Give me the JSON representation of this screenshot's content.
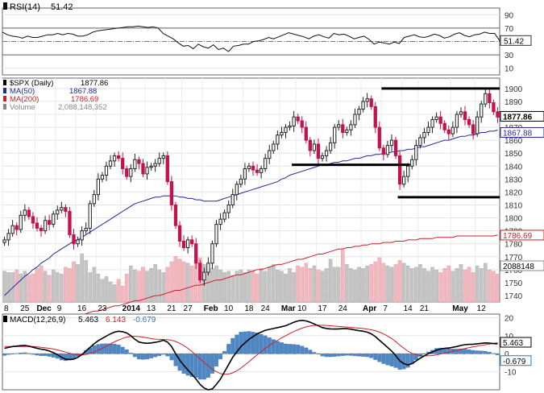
{
  "chart_data": [
    {
      "type": "line",
      "panel": "rsi",
      "legend": {
        "label": "RSI(14)",
        "value": "51.42"
      },
      "yticks": [
        90,
        70,
        50,
        30,
        10
      ],
      "ylim": [
        0,
        100
      ],
      "levels": [
        70,
        30
      ],
      "current_badge": "51.42",
      "series": [
        {
          "name": "RSI(14)",
          "values": [
            64,
            60,
            58,
            57,
            55,
            58,
            56,
            56,
            58,
            60,
            60,
            62,
            60,
            62,
            61,
            58,
            58,
            60,
            64,
            66,
            67,
            68,
            69,
            70,
            71,
            72,
            72,
            73,
            72,
            71,
            72,
            70,
            62,
            58,
            54,
            48,
            43,
            44,
            39,
            46,
            42,
            40,
            45,
            38,
            40,
            35,
            43,
            44,
            46,
            46,
            50,
            51,
            53,
            56,
            54,
            57,
            60,
            63,
            61,
            59,
            57,
            54,
            58,
            60,
            57,
            55,
            62,
            60,
            61,
            58,
            54,
            56,
            58,
            53,
            46,
            49,
            48,
            46,
            49,
            47,
            56,
            58,
            60,
            57,
            56,
            58,
            61,
            59,
            55,
            57,
            61,
            63,
            59,
            57,
            60,
            61,
            64,
            62,
            62,
            51
          ]
        }
      ]
    },
    {
      "type": "candlestick",
      "panel": "price",
      "legend": [
        {
          "label": "$SPX (Daily)",
          "value": "1877.86",
          "color": "#000000"
        },
        {
          "label": "MA(50)",
          "value": "1867.88",
          "color": "#1f2a9c"
        },
        {
          "label": "MA(200)",
          "value": "1786.69",
          "color": "#cc1f2c"
        },
        {
          "label": "Volume",
          "value": "2,088,148,352",
          "color": "#888888"
        }
      ],
      "yticks": [
        1900,
        1890,
        1880,
        1870,
        1860,
        1850,
        1840,
        1830,
        1820,
        1810,
        1800,
        1790,
        1780,
        1770,
        1760,
        1750,
        1740
      ],
      "ylim": [
        1735,
        1908
      ],
      "badges": {
        "price": "1877.86",
        "ma50": "1867.88",
        "ma200": "1786.69",
        "volume": "2088148"
      },
      "x_labels": [
        {
          "i": 0,
          "text": "8"
        },
        {
          "i": 4,
          "text": "25"
        },
        {
          "i": 8,
          "text": "Dec"
        },
        {
          "i": 13,
          "text": "9"
        },
        {
          "i": 18,
          "text": "16"
        },
        {
          "i": 23,
          "text": "23"
        },
        {
          "i": 29,
          "text": "2014"
        },
        {
          "i": 35,
          "text": "13"
        },
        {
          "i": 40,
          "text": "21"
        },
        {
          "i": 44,
          "text": "27"
        },
        {
          "i": 49,
          "text": "Feb"
        },
        {
          "i": 54,
          "text": "10"
        },
        {
          "i": 59,
          "text": "18"
        },
        {
          "i": 63,
          "text": "24"
        },
        {
          "i": 68,
          "text": "Mar"
        },
        {
          "i": 72,
          "text": "10"
        },
        {
          "i": 77,
          "text": "17"
        },
        {
          "i": 82,
          "text": "24"
        },
        {
          "i": 88,
          "text": "Apr"
        },
        {
          "i": 93,
          "text": "7"
        },
        {
          "i": 98,
          "text": "14"
        },
        {
          "i": 102,
          "text": "21"
        },
        {
          "i": 110,
          "text": "May"
        },
        {
          "i": 116,
          "text": "12"
        }
      ],
      "closes": [
        1783,
        1788,
        1794,
        1791,
        1802,
        1806,
        1801,
        1796,
        1792,
        1790,
        1798,
        1795,
        1803,
        1806,
        1808,
        1805,
        1787,
        1780,
        1783,
        1790,
        1792,
        1811,
        1818,
        1830,
        1833,
        1840,
        1844,
        1848,
        1846,
        1838,
        1832,
        1838,
        1845,
        1842,
        1834,
        1839,
        1840,
        1842,
        1846,
        1848,
        1828,
        1810,
        1794,
        1782,
        1777,
        1783,
        1780,
        1765,
        1752,
        1758,
        1765,
        1780,
        1795,
        1799,
        1804,
        1810,
        1818,
        1826,
        1830,
        1838,
        1840,
        1837,
        1835,
        1838,
        1846,
        1852,
        1857,
        1864,
        1866,
        1870,
        1871,
        1878,
        1875,
        1870,
        1860,
        1852,
        1857,
        1846,
        1848,
        1852,
        1858,
        1870,
        1872,
        1866,
        1868,
        1872,
        1880,
        1884,
        1890,
        1892,
        1886,
        1870,
        1854,
        1849,
        1856,
        1860,
        1848,
        1826,
        1832,
        1840,
        1845,
        1856,
        1862,
        1866,
        1870,
        1876,
        1878,
        1873,
        1868,
        1865,
        1870,
        1880,
        1882,
        1876,
        1872,
        1865,
        1878,
        1888,
        1896,
        1889,
        1882,
        1877.86
      ],
      "ma50": [
        1740,
        1743,
        1746,
        1749,
        1752,
        1755,
        1757,
        1760,
        1762,
        1765,
        1767,
        1769,
        1772,
        1774,
        1776,
        1778,
        1780,
        1782,
        1783,
        1785,
        1787,
        1789,
        1791,
        1793,
        1795,
        1797,
        1799,
        1801,
        1803,
        1805,
        1807,
        1809,
        1811,
        1812,
        1813,
        1814,
        1815,
        1816,
        1816,
        1817,
        1817,
        1817,
        1817,
        1816,
        1816,
        1815,
        1815,
        1814,
        1814,
        1813,
        1813,
        1813,
        1813,
        1814,
        1815,
        1816,
        1817,
        1818,
        1819,
        1820,
        1821,
        1822,
        1823,
        1824,
        1825,
        1826,
        1827,
        1828,
        1830,
        1831,
        1833,
        1834,
        1835,
        1836,
        1837,
        1838,
        1839,
        1840,
        1841,
        1841,
        1842,
        1843,
        1843,
        1844,
        1844,
        1845,
        1846,
        1846,
        1847,
        1848,
        1848,
        1849,
        1849,
        1850,
        1850,
        1851,
        1851,
        1852,
        1852,
        1853,
        1853,
        1854,
        1855,
        1855,
        1856,
        1857,
        1858,
        1859,
        1860,
        1860,
        1861,
        1862,
        1863,
        1863,
        1864,
        1864,
        1865,
        1866,
        1866,
        1867,
        1867,
        1867.88
      ],
      "ma200": [
        1710,
        1711,
        1712,
        1712,
        1713,
        1714,
        1715,
        1716,
        1716,
        1717,
        1718,
        1719,
        1720,
        1720,
        1721,
        1722,
        1723,
        1724,
        1724,
        1725,
        1726,
        1727,
        1728,
        1728,
        1729,
        1730,
        1731,
        1732,
        1732,
        1733,
        1734,
        1735,
        1736,
        1736,
        1737,
        1738,
        1739,
        1740,
        1740,
        1741,
        1742,
        1743,
        1744,
        1744,
        1745,
        1746,
        1747,
        1748,
        1748,
        1749,
        1750,
        1751,
        1752,
        1752,
        1753,
        1754,
        1755,
        1756,
        1756,
        1757,
        1758,
        1759,
        1760,
        1760,
        1761,
        1762,
        1763,
        1764,
        1764,
        1765,
        1766,
        1767,
        1768,
        1768,
        1769,
        1770,
        1771,
        1772,
        1772,
        1773,
        1774,
        1775,
        1776,
        1776,
        1777,
        1777,
        1778,
        1778,
        1779,
        1779,
        1780,
        1780,
        1780,
        1781,
        1781,
        1781,
        1782,
        1782,
        1782,
        1783,
        1783,
        1783,
        1784,
        1784,
        1784,
        1784,
        1785,
        1785,
        1785,
        1785,
        1785,
        1786,
        1786,
        1786,
        1786,
        1786,
        1786,
        1786,
        1786,
        1786,
        1786,
        1786.69
      ],
      "volume_billions": [
        2.3,
        2.2,
        2.2,
        2.4,
        2.1,
        2.3,
        2.0,
        2.1,
        2.5,
        2.7,
        2.3,
        2.0,
        2.4,
        2.2,
        2.1,
        2.6,
        2.5,
        3.0,
        2.8,
        3.6,
        3.1,
        2.2,
        2.6,
        2.1,
        1.7,
        1.9,
        1.5,
        1.3,
        1.7,
        1.2,
        2.1,
        2.7,
        2.4,
        2.3,
        2.6,
        2.3,
        2.5,
        2.8,
        2.4,
        2.2,
        2.6,
        3.0,
        3.4,
        3.2,
        3.0,
        2.9,
        2.7,
        3.1,
        3.3,
        2.8,
        2.6,
        2.5,
        2.7,
        2.4,
        2.2,
        2.3,
        2.0,
        2.3,
        2.4,
        2.2,
        2.4,
        2.3,
        2.1,
        2.5,
        2.3,
        2.6,
        2.8,
        2.4,
        2.3,
        2.1,
        2.5,
        2.2,
        2.7,
        2.6,
        2.9,
        2.5,
        2.7,
        2.4,
        2.3,
        2.5,
        3.2,
        2.6,
        2.6,
        3.9,
        2.8,
        2.5,
        2.4,
        2.6,
        2.5,
        2.7,
        2.8,
        3.0,
        3.3,
        2.9,
        2.7,
        2.6,
        2.8,
        3.1,
        2.9,
        2.7,
        2.5,
        2.6,
        2.8,
        2.5,
        2.3,
        2.6,
        2.4,
        2.2,
        2.5,
        2.7,
        2.3,
        2.5,
        2.8,
        2.4,
        2.6,
        2.2,
        2.7,
        2.5,
        2.9,
        2.4,
        2.3,
        2.09
      ],
      "annotations": [
        {
          "type": "hline",
          "y": 1900,
          "x_from": 93,
          "x_to": 122
        },
        {
          "type": "hline",
          "y": 1841,
          "x_from": 71,
          "x_to": 100
        },
        {
          "type": "hline",
          "y": 1816,
          "x_from": 97,
          "x_to": 122
        }
      ]
    },
    {
      "type": "line",
      "panel": "macd",
      "legend": [
        {
          "label": "MACD(12,26,9)",
          "value": "5.463",
          "color": "#000000"
        },
        {
          "label": "",
          "value": "6.143",
          "color": "#cc1f2c"
        },
        {
          "label": "",
          "value": "-0.679",
          "color": "#2e7ab8"
        }
      ],
      "yticks": [
        20,
        10,
        0,
        -10
      ],
      "ylim": [
        -20,
        22
      ],
      "badges": {
        "macd": "5.463",
        "histogram": "-0.679"
      },
      "series": [
        {
          "name": "MACD",
          "values": [
            3,
            3.5,
            4,
            4.2,
            4.5,
            4.6,
            4.2,
            3.6,
            3,
            2.5,
            2.2,
            1.5,
            0.6,
            -0.5,
            -2,
            -3,
            -3.2,
            -3,
            -2,
            -0.5,
            1.5,
            3.5,
            5.5,
            7.2,
            8.5,
            9.8,
            11,
            12,
            12.5,
            12.2,
            11.5,
            10,
            8,
            6.5,
            6,
            5.8,
            6,
            6.3,
            6.8,
            7.5,
            6.5,
            4,
            0,
            -3.5,
            -6.5,
            -9,
            -11.5,
            -14,
            -17,
            -19,
            -20,
            -19.5,
            -17,
            -14,
            -10,
            -6,
            -2,
            1,
            4,
            6,
            8,
            9.5,
            11,
            12,
            13,
            13.5,
            14,
            14.5,
            15,
            15.5,
            16.5,
            17.5,
            18.2,
            18.5,
            18.2,
            17.5,
            16.5,
            15.5,
            14.5,
            14,
            13.8,
            13.7,
            13.8,
            13.9,
            13.9,
            13.6,
            13.2,
            12.8,
            12.5,
            12,
            11,
            9.5,
            7.5,
            5.5,
            3.5,
            1.5,
            -1,
            -4,
            -5.5,
            -6.2,
            -5.5,
            -4,
            -2.5,
            -1.2,
            0,
            1,
            2,
            2.6,
            3,
            3.2,
            3.6,
            4,
            4.6,
            5,
            5.2,
            5.3,
            5.5,
            5.8,
            6,
            5.9,
            5.6,
            5.463
          ]
        },
        {
          "name": "Signal",
          "values": [
            4,
            4,
            4,
            4,
            4,
            4,
            4,
            4,
            3.8,
            3.6,
            3.3,
            3,
            2.6,
            2.1,
            1.5,
            0.9,
            0.3,
            -0.2,
            -0.5,
            -0.6,
            -0.4,
            0.2,
            1,
            2,
            3,
            4.2,
            5.4,
            6.6,
            7.6,
            8.5,
            9.2,
            9.6,
            9.7,
            9.5,
            9.2,
            8.8,
            8.4,
            8.1,
            8,
            7.9,
            7.8,
            7.5,
            6.8,
            5.8,
            4.5,
            3,
            1.2,
            -0.8,
            -2.8,
            -4.8,
            -6.8,
            -8.6,
            -10,
            -11,
            -11.4,
            -11.3,
            -10.6,
            -9.5,
            -8,
            -6.2,
            -4.4,
            -2.5,
            -0.6,
            1.2,
            3,
            4.6,
            6.1,
            7.5,
            8.8,
            10,
            11.2,
            12.3,
            13.3,
            14.2,
            14.9,
            15.4,
            15.7,
            15.8,
            15.8,
            15.7,
            15.5,
            15.3,
            15.1,
            15,
            14.8,
            14.6,
            14.4,
            14.2,
            14,
            13.7,
            13.3,
            12.8,
            12,
            11,
            9.8,
            8.4,
            6.7,
            4.8,
            3,
            1.4,
            0.2,
            -0.6,
            -1,
            -1.2,
            -1.2,
            -1,
            -0.6,
            -0.1,
            0.4,
            0.9,
            1.4,
            1.9,
            2.4,
            2.9,
            3.4,
            3.8,
            4.2,
            4.6,
            5,
            5.4,
            5.8,
            6.143
          ]
        }
      ],
      "histogram": [
        -1,
        -0.5,
        0,
        0.2,
        0.5,
        0.6,
        0.2,
        -0.4,
        -0.8,
        -1.1,
        -1.1,
        -1.5,
        -2,
        -2.6,
        -3.5,
        -3.9,
        -3.5,
        -2.8,
        -1.5,
        0.1,
        1.9,
        3.3,
        4.5,
        5.2,
        5.5,
        5.6,
        5.6,
        5.4,
        4.9,
        3.7,
        2.3,
        0.4,
        -1.7,
        -3,
        -3.2,
        -3,
        -2.4,
        -1.8,
        -1.2,
        -0.4,
        -1.3,
        -3.5,
        -6.8,
        -9.3,
        -11,
        -12,
        -12.7,
        -13.2,
        -14.2,
        -14.2,
        -13.2,
        -10.9,
        -7,
        -3,
        1.4,
        5.3,
        8.6,
        10.5,
        12,
        12.2,
        12.4,
        12,
        11.6,
        10.8,
        10,
        8.9,
        7.9,
        7,
        6.2,
        5.5,
        5.3,
        5.2,
        4.9,
        4.3,
        3.3,
        2.1,
        0.8,
        -0.3,
        -1.3,
        -1.7,
        -1.7,
        -1.6,
        -1.3,
        -1.1,
        -0.9,
        -1,
        -1.2,
        -1.4,
        -1.5,
        -1.7,
        -2.3,
        -3.3,
        -4.5,
        -5.5,
        -6.3,
        -6.9,
        -7.7,
        -8.8,
        -8.5,
        -7.6,
        -5.7,
        -3.4,
        -1.5,
        -0.2,
        1,
        2,
        3,
        3.2,
        3.1,
        2.8,
        2.7,
        2.6,
        2.7,
        2.6,
        2.3,
        1.9,
        1.7,
        1.6,
        1.4,
        0.9,
        0.2,
        -0.679
      ]
    }
  ]
}
